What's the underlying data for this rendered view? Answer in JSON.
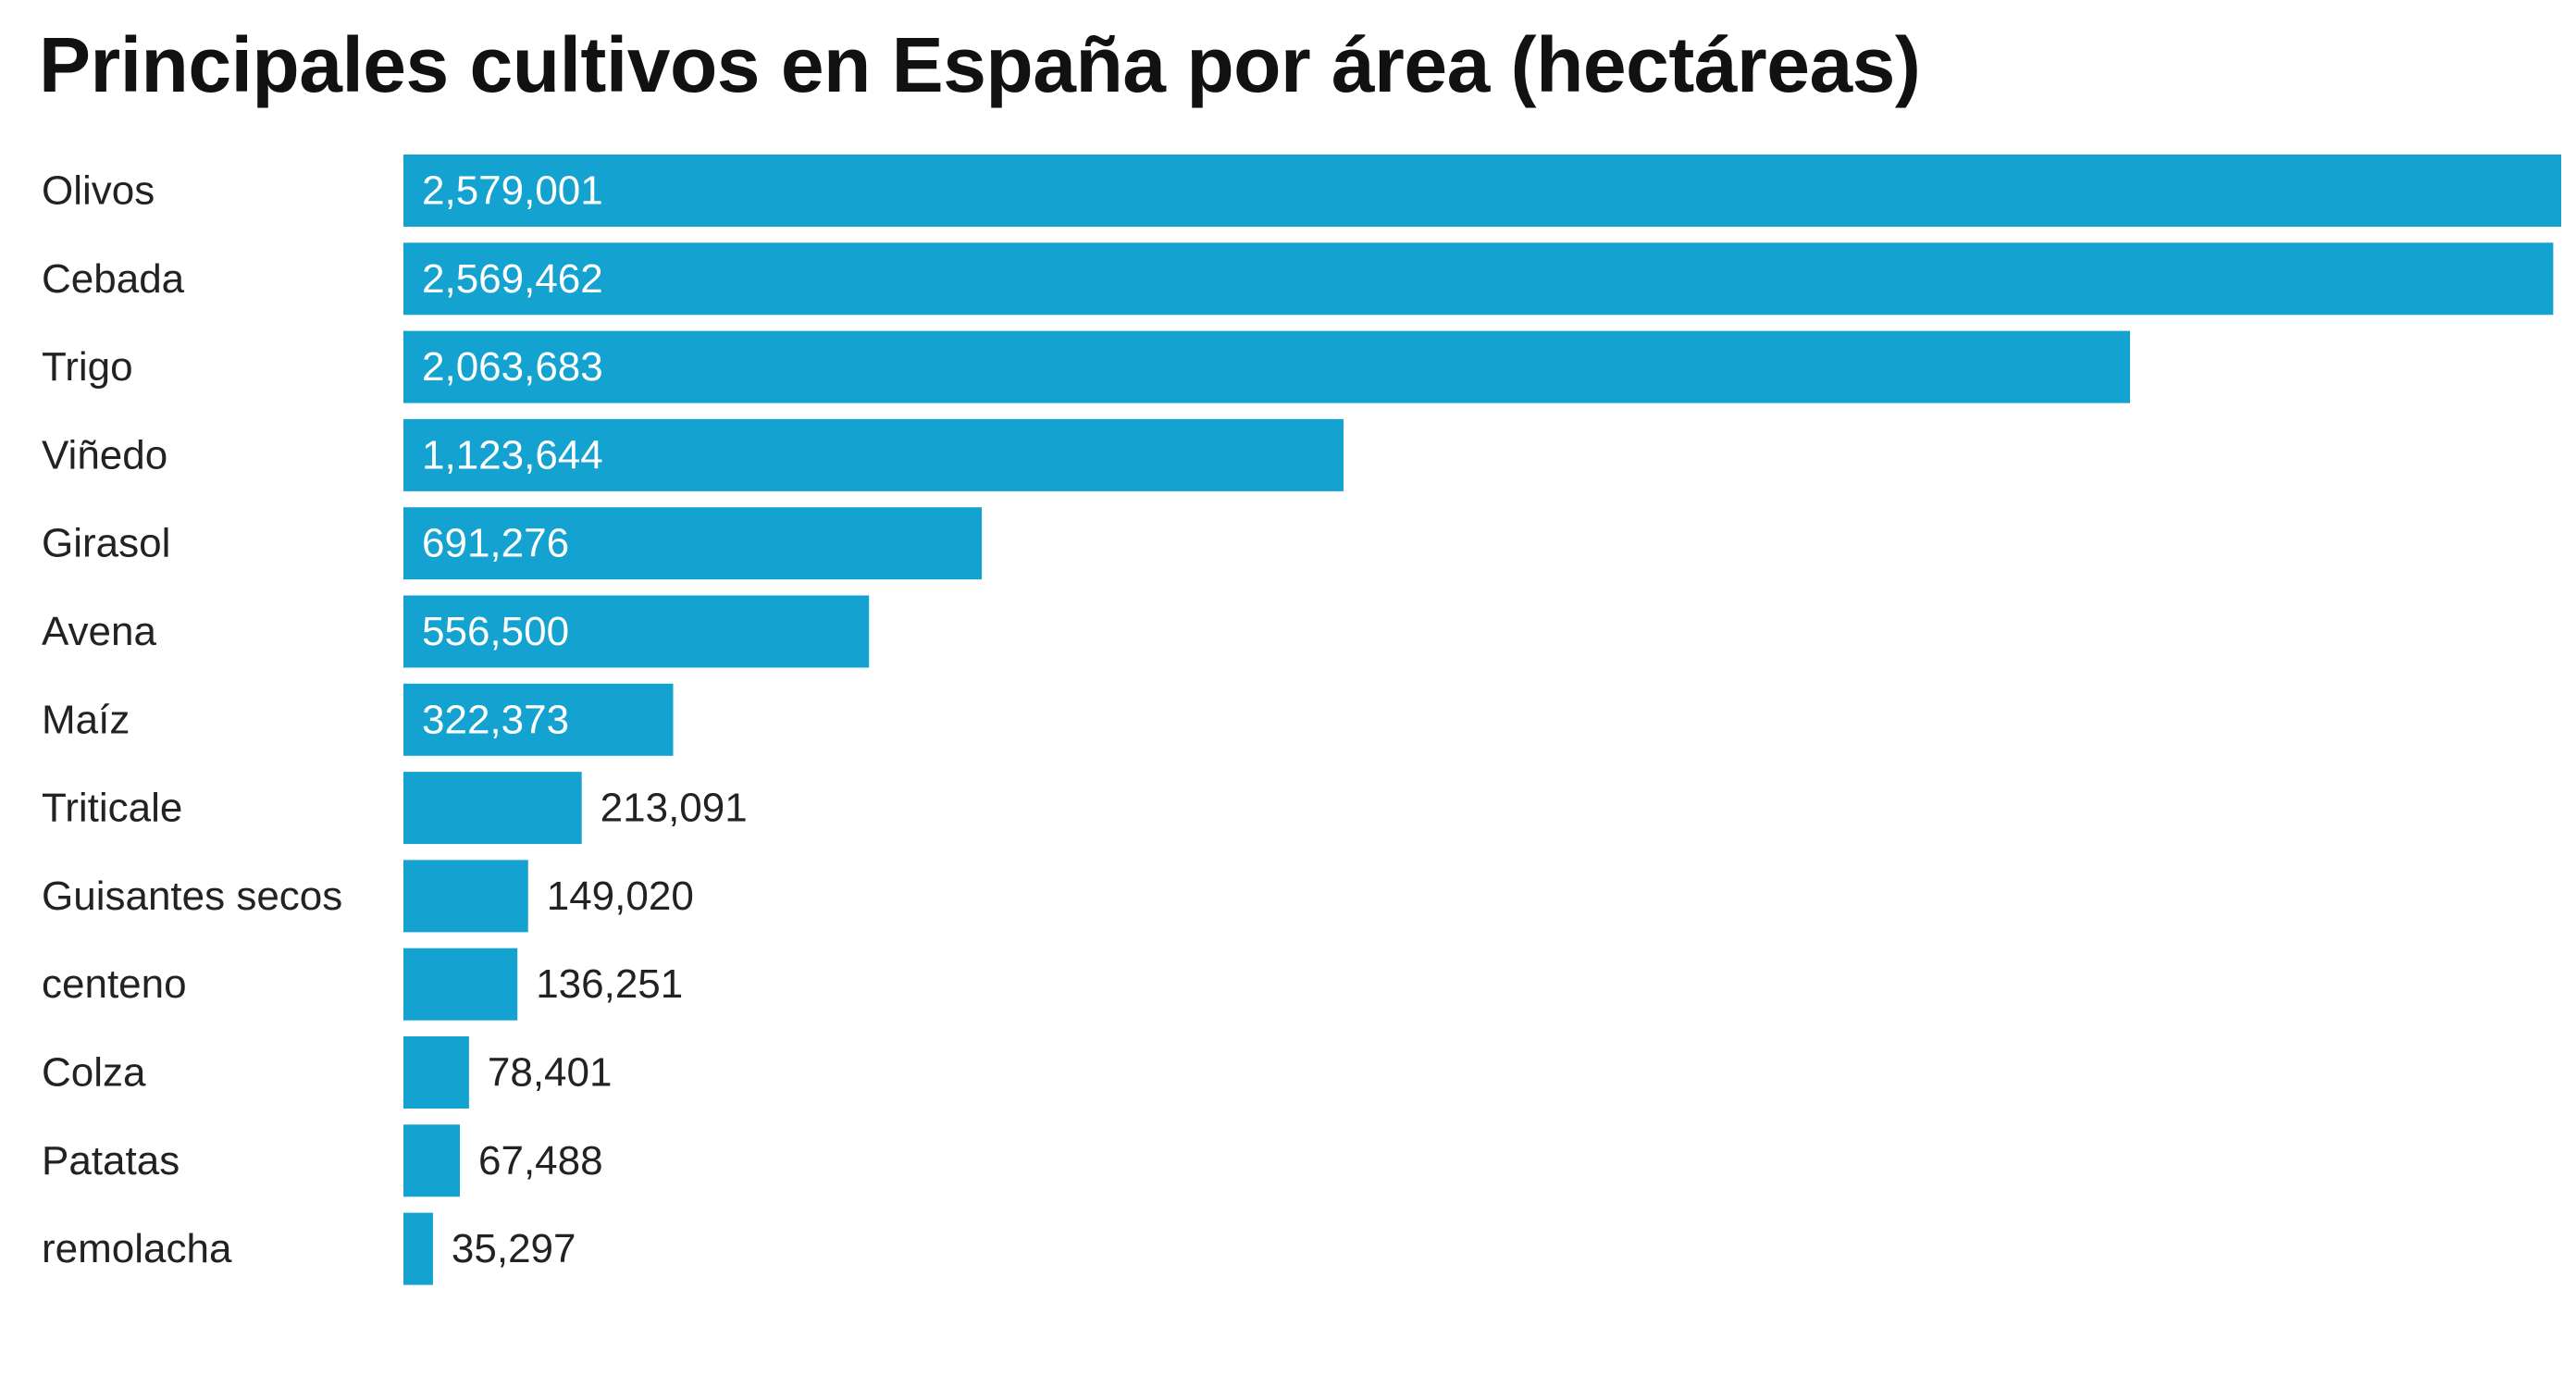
{
  "chart_data": {
    "type": "bar",
    "orientation": "horizontal",
    "title": "Principales cultivos en España por área (hectáreas)",
    "categories": [
      "Olivos",
      "Cebada",
      "Trigo",
      "Viñedo",
      "Girasol",
      "Avena",
      "Maíz",
      "Triticale",
      "Guisantes secos",
      "centeno",
      "Colza",
      "Patatas",
      "remolacha"
    ],
    "values": [
      2579001,
      2569462,
      2063683,
      1123644,
      691276,
      556500,
      322373,
      213091,
      149020,
      136251,
      78401,
      67488,
      35297
    ],
    "data_labels": [
      "2,579,001",
      "2,569,462",
      "2,063,683",
      "1,123,644",
      "691,276",
      "556,500",
      "322,373",
      "213,091",
      "149,020",
      "136,251",
      "78,401",
      "67,488",
      "35,297"
    ],
    "bar_color": "#14a3d1",
    "label_inside_color": "#ffffff",
    "label_outside_color": "#222222",
    "category_label_color": "#222222",
    "xlim": [
      0,
      2579001
    ],
    "grid": false,
    "legend": "none",
    "axis_visible": false
  }
}
